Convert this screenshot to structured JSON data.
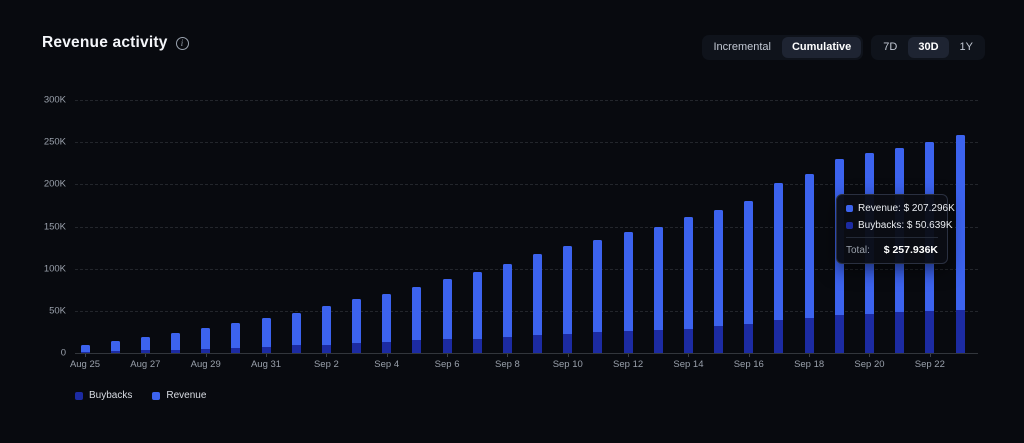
{
  "header": {
    "title": "Revenue activity",
    "toggle_groups": [
      {
        "name": "view-toggle",
        "options": [
          "Incremental",
          "Cumulative"
        ],
        "selected": "Cumulative"
      },
      {
        "name": "range-toggle",
        "options": [
          "7D",
          "30D",
          "1Y"
        ],
        "selected": "30D"
      }
    ]
  },
  "colors": {
    "background": "#080a0f",
    "revenue": "#3c63ee",
    "buybacks": "#1c2ba2",
    "axis_text": "#99a0ab",
    "selected_button_bg": "#1e2432"
  },
  "chart_data": {
    "type": "bar",
    "stacked": true,
    "title": "Revenue activity",
    "xlabel": "",
    "ylabel": "",
    "ylim": [
      0,
      300
    ],
    "yticks": [
      0,
      50,
      100,
      150,
      200,
      250,
      300
    ],
    "ytick_labels": [
      "0",
      "50K",
      "100K",
      "150K",
      "200K",
      "250K",
      "300K"
    ],
    "grid": "horizontal-dashed",
    "legend_position": "bottom-left",
    "x": [
      "Aug 25",
      "Aug 26",
      "Aug 27",
      "Aug 28",
      "Aug 29",
      "Aug 30",
      "Aug 31",
      "Sep 1",
      "Sep 2",
      "Sep 3",
      "Sep 4",
      "Sep 5",
      "Sep 6",
      "Sep 7",
      "Sep 8",
      "Sep 9",
      "Sep 10",
      "Sep 11",
      "Sep 12",
      "Sep 13",
      "Sep 14",
      "Sep 15",
      "Sep 16",
      "Sep 17",
      "Sep 18",
      "Sep 19",
      "Sep 20",
      "Sep 21",
      "Sep 22",
      "Sep 23"
    ],
    "x_labeled_every": 2,
    "series": [
      {
        "name": "Buybacks",
        "color_key": "buybacks",
        "unit": "K",
        "values": [
          1,
          2,
          3,
          4,
          5,
          6,
          7,
          9,
          10,
          11.5,
          13.5,
          15,
          16.5,
          17,
          19,
          21.5,
          23,
          24.5,
          26,
          27,
          28.5,
          31.5,
          34,
          39,
          41,
          44.8,
          46.8,
          48.5,
          49.5,
          50.639
        ]
      },
      {
        "name": "Revenue",
        "color_key": "revenue",
        "unit": "K",
        "values": [
          8,
          12,
          16,
          20,
          25,
          29,
          34,
          38.5,
          46,
          52,
          56.5,
          63,
          71.5,
          79,
          87,
          95.5,
          104,
          109.5,
          117,
          123,
          132.5,
          138.5,
          146,
          162,
          171,
          185.2,
          190.2,
          194.5,
          200.5,
          207.296
        ]
      }
    ],
    "legend": [
      "Buybacks",
      "Revenue"
    ]
  },
  "tooltip": {
    "rows": [
      {
        "series": "Revenue",
        "color_key": "revenue",
        "text": "Revenue: $ 207.296K"
      },
      {
        "series": "Buybacks",
        "color_key": "buybacks",
        "text": "Buybacks: $ 50.639K"
      }
    ],
    "total_label": "Total:",
    "total_value": "$ 257.936K"
  }
}
